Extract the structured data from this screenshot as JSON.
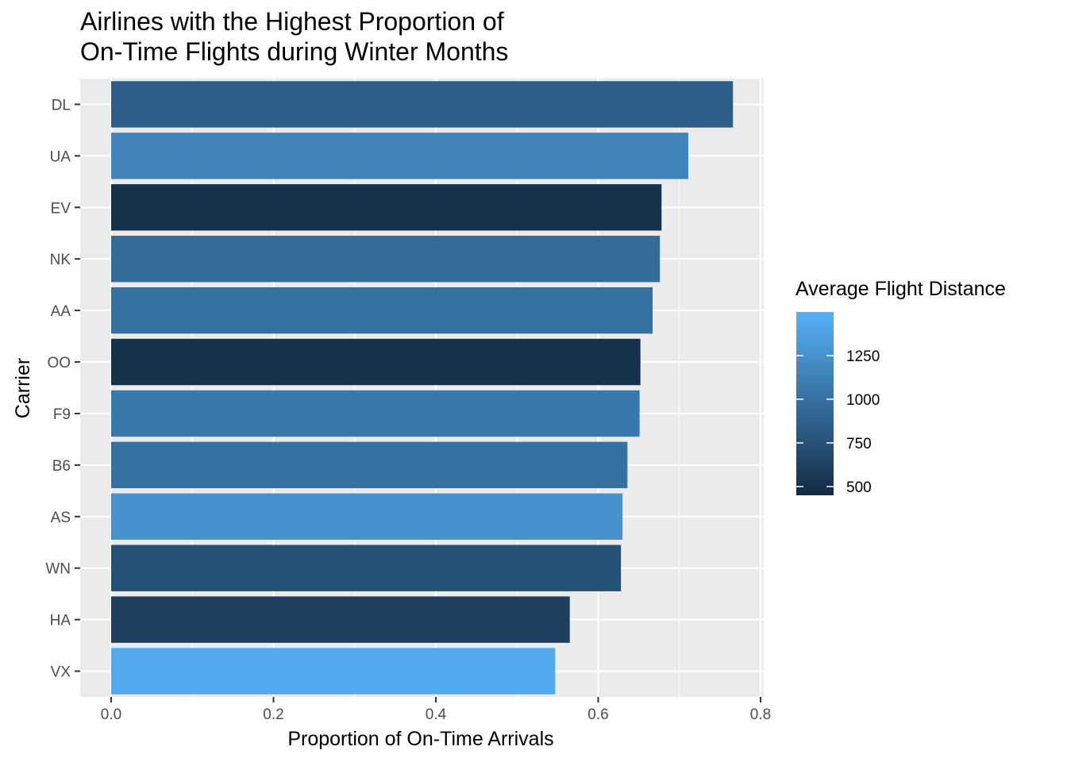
{
  "chart_data": {
    "type": "bar",
    "orientation": "horizontal",
    "title_lines": [
      "Airlines with the Highest Proportion of",
      "On-Time Flights during Winter Months"
    ],
    "xlabel": "Proportion of On-Time Arrivals",
    "ylabel": "Carrier",
    "xlim": [
      0,
      0.8
    ],
    "x_ticks": [
      "0.0",
      "0.2",
      "0.4",
      "0.6",
      "0.8"
    ],
    "x_tick_values": [
      0.0,
      0.2,
      0.4,
      0.6,
      0.8
    ],
    "grid": true,
    "categories": [
      "DL",
      "UA",
      "EV",
      "NK",
      "AA",
      "OO",
      "F9",
      "B6",
      "AS",
      "WN",
      "HA",
      "VX"
    ],
    "values": [
      0.766,
      0.711,
      0.678,
      0.676,
      0.667,
      0.652,
      0.651,
      0.636,
      0.63,
      0.628,
      0.565,
      0.547
    ],
    "fill_values": [
      850,
      1150,
      500,
      950,
      1000,
      500,
      1050,
      1000,
      1250,
      750,
      600,
      1450
    ],
    "legend": {
      "title": "Average Flight Distance",
      "position": "right",
      "ticks": [
        500,
        750,
        1000,
        1250
      ],
      "tick_labels": [
        "500",
        "750",
        "1000",
        "1250"
      ],
      "range": [
        450,
        1500
      ],
      "color_low": "#132B43",
      "color_high": "#56B1F7"
    },
    "colors": {
      "panel_bg": "#ebebeb",
      "grid": "#ffffff",
      "tick_text": "#4d4d4d"
    }
  }
}
